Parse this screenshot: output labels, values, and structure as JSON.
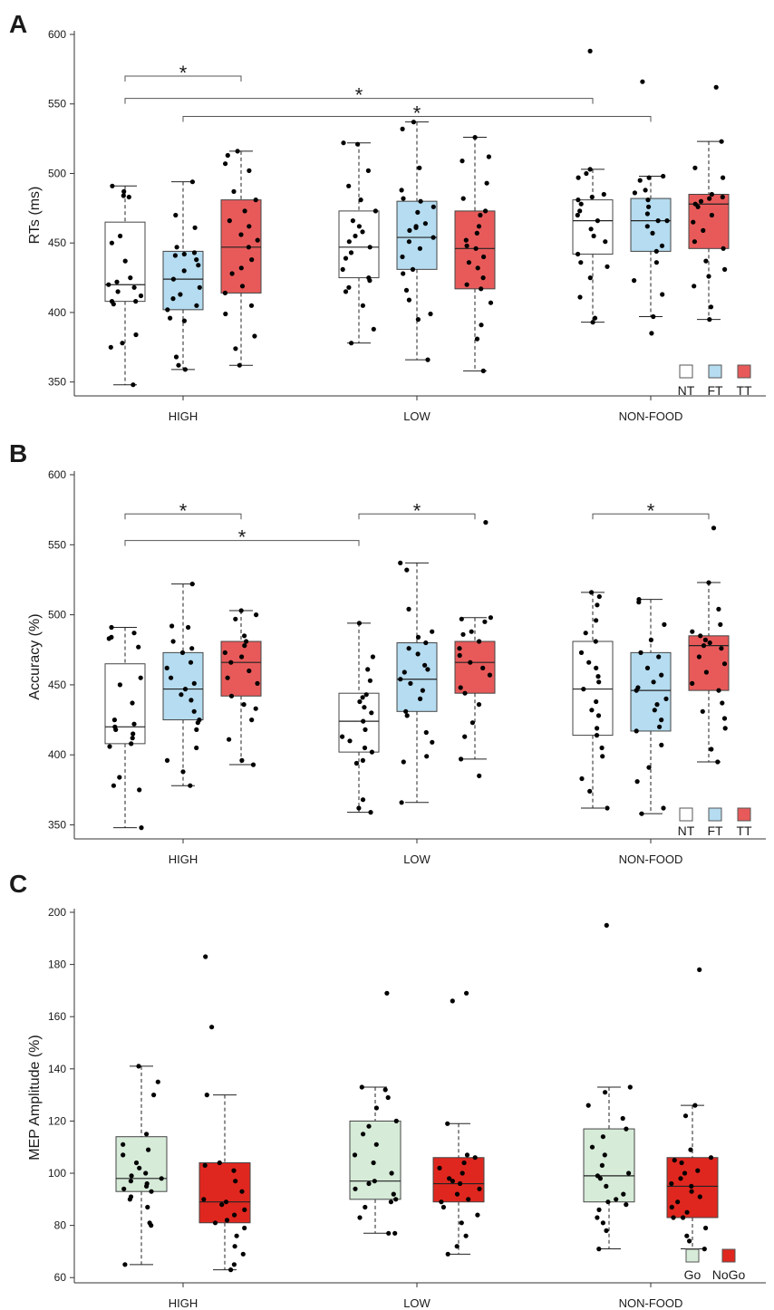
{
  "colors": {
    "NT": "#ffffff",
    "FT": "#b5dcf0",
    "TT": "#e85a5a",
    "Go": "#d6ebd8",
    "NoGo": "#e0271f"
  },
  "chart_data": [
    {
      "type": "box",
      "panel_label": "A",
      "title": "",
      "ylabel": "RTs (ms)",
      "xlabel": "",
      "ylim": [
        340,
        600
      ],
      "yticks": [
        350,
        400,
        450,
        500,
        550,
        600
      ],
      "grid": false,
      "legend_position": "bottom-right",
      "categories": [
        "HIGH",
        "LOW",
        "NON-FOOD"
      ],
      "series_names": [
        "NT",
        "FT",
        "TT"
      ],
      "boxes": [
        {
          "category": "HIGH",
          "series": "NT",
          "whisker_low": 348,
          "q1": 408,
          "median": 420,
          "q3": 465,
          "whisker_high": 491,
          "points": [
            348,
            375,
            378,
            384,
            406,
            408,
            408,
            412,
            415,
            418,
            420,
            422,
            425,
            437,
            450,
            455,
            483,
            484,
            487,
            491
          ]
        },
        {
          "category": "HIGH",
          "series": "FT",
          "whisker_low": 359,
          "q1": 402,
          "median": 424,
          "q3": 444,
          "whisker_high": 494,
          "points": [
            359,
            362,
            368,
            394,
            396,
            402,
            405,
            410,
            413,
            418,
            424,
            430,
            434,
            438,
            441,
            442,
            443,
            447,
            461,
            470,
            494
          ]
        },
        {
          "category": "HIGH",
          "series": "TT",
          "whisker_low": 362,
          "q1": 414,
          "median": 447,
          "q3": 481,
          "whisker_high": 516,
          "points": [
            362,
            374,
            383,
            399,
            405,
            414,
            419,
            428,
            432,
            438,
            447,
            452,
            456,
            462,
            466,
            473,
            481,
            487,
            502,
            507,
            513,
            516
          ]
        },
        {
          "category": "LOW",
          "series": "NT",
          "whisker_low": 378,
          "q1": 425,
          "median": 447,
          "q3": 473,
          "whisker_high": 522,
          "points": [
            378,
            388,
            405,
            415,
            418,
            423,
            425,
            431,
            439,
            443,
            447,
            451,
            455,
            458,
            462,
            466,
            473,
            481,
            491,
            502,
            521,
            522
          ]
        },
        {
          "category": "LOW",
          "series": "FT",
          "whisker_low": 366,
          "q1": 431,
          "median": 454,
          "q3": 480,
          "whisker_high": 537,
          "points": [
            366,
            395,
            399,
            409,
            416,
            428,
            431,
            440,
            446,
            451,
            454,
            459,
            461,
            462,
            464,
            472,
            476,
            480,
            482,
            488,
            504,
            532,
            537
          ]
        },
        {
          "category": "LOW",
          "series": "TT",
          "whisker_low": 358,
          "q1": 417,
          "median": 446,
          "q3": 473,
          "whisker_high": 526,
          "points": [
            358,
            381,
            391,
            407,
            417,
            420,
            425,
            432,
            436,
            440,
            446,
            448,
            452,
            457,
            462,
            470,
            473,
            482,
            493,
            509,
            512,
            526
          ]
        },
        {
          "category": "NON-FOOD",
          "series": "NT",
          "whisker_low": 393,
          "q1": 442,
          "median": 466,
          "q3": 481,
          "whisker_high": 503,
          "points": [
            393,
            396,
            411,
            425,
            433,
            436,
            442,
            451,
            455,
            460,
            466,
            470,
            473,
            478,
            481,
            483,
            485,
            497,
            500,
            503,
            588
          ]
        },
        {
          "category": "NON-FOOD",
          "series": "FT",
          "whisker_low": 397,
          "q1": 444,
          "median": 466,
          "q3": 482,
          "whisker_high": 498,
          "points": [
            385,
            397,
            413,
            423,
            436,
            444,
            448,
            457,
            462,
            466,
            466,
            471,
            476,
            481,
            486,
            488,
            495,
            497,
            498,
            566
          ]
        },
        {
          "category": "NON-FOOD",
          "series": "TT",
          "whisker_low": 395,
          "q1": 446,
          "median": 478,
          "q3": 485,
          "whisker_high": 523,
          "points": [
            395,
            404,
            419,
            426,
            431,
            437,
            446,
            451,
            459,
            465,
            470,
            476,
            478,
            480,
            482,
            483,
            485,
            497,
            504,
            523,
            562
          ]
        }
      ],
      "significance": [
        {
          "from_category": "HIGH",
          "from_series": "NT",
          "to_category": "HIGH",
          "to_series": "TT",
          "level": 570,
          "label": "*"
        },
        {
          "from_category": "HIGH",
          "from_series": "NT",
          "to_category": "NON-FOOD",
          "to_series": "NT",
          "level": 554,
          "label": "*"
        },
        {
          "from_category": "HIGH",
          "from_series": "FT",
          "to_category": "NON-FOOD",
          "to_series": "FT",
          "level": 541,
          "label": "*"
        }
      ]
    },
    {
      "type": "box",
      "panel_label": "B",
      "title": "",
      "ylabel": "Accuracy (%)",
      "xlabel": "",
      "ylim": [
        340,
        600
      ],
      "yticks": [
        350,
        400,
        450,
        500,
        550,
        600
      ],
      "grid": false,
      "legend_position": "bottom-right",
      "categories": [
        "HIGH",
        "LOW",
        "NON-FOOD"
      ],
      "series_names": [
        "NT",
        "FT",
        "TT"
      ],
      "boxes": [
        {
          "category": "HIGH",
          "series": "NT",
          "whisker_low": 348,
          "q1": 408,
          "median": 420,
          "q3": 465,
          "whisker_high": 491,
          "points": [
            348,
            375,
            378,
            384,
            406,
            408,
            412,
            415,
            418,
            420,
            422,
            425,
            437,
            450,
            455,
            477,
            483,
            484,
            487,
            491
          ]
        },
        {
          "category": "HIGH",
          "series": "FT",
          "whisker_low": 378,
          "q1": 425,
          "median": 447,
          "q3": 473,
          "whisker_high": 522,
          "points": [
            378,
            388,
            396,
            405,
            418,
            423,
            425,
            431,
            439,
            443,
            447,
            451,
            455,
            462,
            466,
            473,
            476,
            481,
            491,
            492,
            522
          ]
        },
        {
          "category": "HIGH",
          "series": "TT",
          "whisker_low": 393,
          "q1": 442,
          "median": 466,
          "q3": 481,
          "whisker_high": 503,
          "points": [
            393,
            396,
            411,
            425,
            433,
            436,
            442,
            451,
            455,
            460,
            466,
            470,
            473,
            478,
            481,
            485,
            497,
            500,
            503
          ]
        },
        {
          "category": "LOW",
          "series": "NT",
          "whisker_low": 359,
          "q1": 402,
          "median": 424,
          "q3": 444,
          "whisker_high": 494,
          "points": [
            359,
            362,
            368,
            394,
            396,
            402,
            405,
            410,
            413,
            418,
            424,
            430,
            434,
            438,
            441,
            443,
            453,
            461,
            470,
            494
          ]
        },
        {
          "category": "LOW",
          "series": "FT",
          "whisker_low": 366,
          "q1": 431,
          "median": 454,
          "q3": 480,
          "whisker_high": 537,
          "points": [
            366,
            395,
            399,
            409,
            416,
            428,
            431,
            440,
            446,
            451,
            454,
            459,
            461,
            464,
            472,
            476,
            480,
            484,
            488,
            504,
            532,
            537
          ]
        },
        {
          "category": "LOW",
          "series": "TT",
          "whisker_low": 397,
          "q1": 444,
          "median": 466,
          "q3": 481,
          "whisker_high": 498,
          "points": [
            385,
            397,
            413,
            423,
            436,
            444,
            448,
            457,
            462,
            466,
            471,
            476,
            481,
            486,
            488,
            495,
            497,
            498,
            566
          ]
        },
        {
          "category": "NON-FOOD",
          "series": "NT",
          "whisker_low": 362,
          "q1": 414,
          "median": 447,
          "q3": 481,
          "whisker_high": 516,
          "points": [
            362,
            374,
            383,
            399,
            405,
            414,
            419,
            428,
            432,
            438,
            447,
            452,
            456,
            462,
            466,
            473,
            481,
            487,
            496,
            507,
            513,
            516
          ]
        },
        {
          "category": "NON-FOOD",
          "series": "FT",
          "whisker_low": 358,
          "q1": 417,
          "median": 446,
          "q3": 473,
          "whisker_high": 511,
          "points": [
            358,
            362,
            381,
            391,
            407,
            417,
            420,
            425,
            432,
            436,
            440,
            446,
            448,
            452,
            457,
            462,
            470,
            473,
            482,
            493,
            509,
            511
          ]
        },
        {
          "category": "NON-FOOD",
          "series": "TT",
          "whisker_low": 395,
          "q1": 446,
          "median": 478,
          "q3": 485,
          "whisker_high": 523,
          "points": [
            395,
            404,
            419,
            426,
            431,
            437,
            446,
            451,
            459,
            465,
            470,
            476,
            478,
            480,
            482,
            485,
            488,
            493,
            504,
            523,
            562
          ]
        }
      ],
      "significance": [
        {
          "from_category": "HIGH",
          "from_series": "NT",
          "to_category": "HIGH",
          "to_series": "TT",
          "level": 572,
          "label": "*"
        },
        {
          "from_category": "LOW",
          "from_series": "NT",
          "to_category": "LOW",
          "to_series": "TT",
          "level": 572,
          "label": "*"
        },
        {
          "from_category": "NON-FOOD",
          "from_series": "NT",
          "to_category": "NON-FOOD",
          "to_series": "TT",
          "level": 572,
          "label": "*"
        },
        {
          "from_category": "HIGH",
          "from_series": "NT",
          "to_category": "LOW",
          "to_series": "NT",
          "level": 553,
          "label": "*"
        }
      ]
    },
    {
      "type": "box",
      "panel_label": "C",
      "title": "",
      "ylabel": "MEP Amplitude (%)",
      "xlabel": "",
      "ylim": [
        58,
        200
      ],
      "yticks": [
        60,
        80,
        100,
        120,
        140,
        160,
        180,
        200
      ],
      "grid": false,
      "legend_position": "bottom-right",
      "categories": [
        "HIGH",
        "LOW",
        "NON-FOOD"
      ],
      "series_names": [
        "Go",
        "NoGo"
      ],
      "boxes": [
        {
          "category": "HIGH",
          "series": "Go",
          "whisker_low": 65,
          "q1": 93,
          "median": 98,
          "q3": 114,
          "whisker_high": 141,
          "points": [
            65,
            80,
            81,
            87,
            90,
            91,
            93,
            94,
            95,
            96,
            97,
            98,
            99,
            100,
            102,
            104,
            107,
            109,
            111,
            115,
            130,
            135,
            141
          ]
        },
        {
          "category": "HIGH",
          "series": "NoGo",
          "whisker_low": 63,
          "q1": 81,
          "median": 89,
          "q3": 104,
          "whisker_high": 130,
          "points": [
            63,
            65,
            69,
            72,
            76,
            79,
            81,
            82,
            84,
            86,
            88,
            89,
            90,
            93,
            97,
            101,
            103,
            104,
            130,
            156,
            183
          ]
        },
        {
          "category": "LOW",
          "series": "Go",
          "whisker_low": 77,
          "q1": 90,
          "median": 97,
          "q3": 120,
          "whisker_high": 133,
          "points": [
            77,
            77,
            83,
            87,
            89,
            90,
            92,
            94,
            96,
            97,
            100,
            104,
            107,
            111,
            115,
            118,
            120,
            125,
            129,
            132,
            133,
            169
          ]
        },
        {
          "category": "LOW",
          "series": "NoGo",
          "whisker_low": 69,
          "q1": 89,
          "median": 96,
          "q3": 106,
          "whisker_high": 119,
          "points": [
            69,
            72,
            76,
            81,
            84,
            87,
            89,
            90,
            92,
            94,
            96,
            97,
            98,
            100,
            102,
            104,
            106,
            107,
            119,
            166,
            169
          ]
        },
        {
          "category": "NON-FOOD",
          "series": "Go",
          "whisker_low": 71,
          "q1": 89,
          "median": 99,
          "q3": 117,
          "whisker_high": 133,
          "points": [
            71,
            78,
            81,
            83,
            86,
            88,
            89,
            90,
            92,
            95,
            98,
            99,
            100,
            103,
            107,
            110,
            114,
            117,
            121,
            126,
            131,
            133,
            195
          ]
        },
        {
          "category": "NON-FOOD",
          "series": "NoGo",
          "whisker_low": 71,
          "q1": 83,
          "median": 95,
          "q3": 106,
          "whisker_high": 126,
          "points": [
            71,
            74,
            76,
            79,
            83,
            83,
            85,
            87,
            89,
            91,
            93,
            95,
            96,
            98,
            100,
            101,
            104,
            105,
            106,
            109,
            122,
            126,
            178
          ]
        }
      ],
      "significance": []
    }
  ]
}
